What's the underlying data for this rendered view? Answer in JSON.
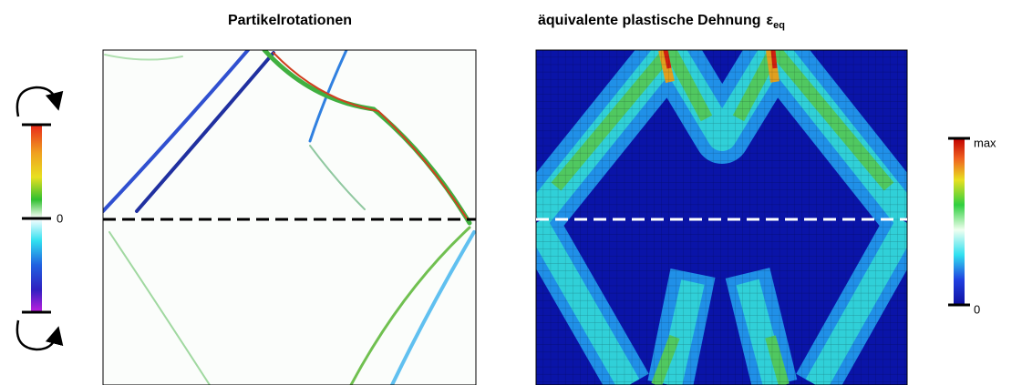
{
  "panels": [
    {
      "title": "Partikelrotationen",
      "colorbar": {
        "labels": [
          "0"
        ]
      }
    },
    {
      "title": "äquivalente plastische Dehnung",
      "title_symbol": "ε",
      "title_subscript": "eq",
      "colorbar": {
        "labels": [
          "max",
          "0"
        ]
      }
    }
  ]
}
